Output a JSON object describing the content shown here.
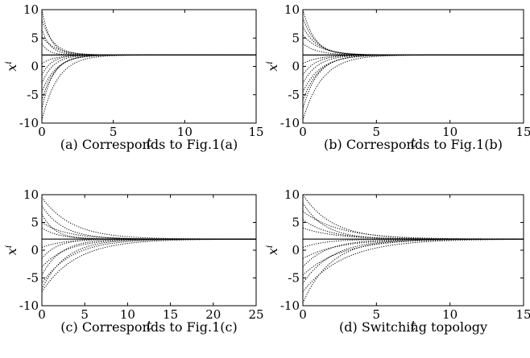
{
  "chart_data": [
    {
      "type": "line",
      "caption": "(a) Corresponds to Fig.1(a)",
      "xlabel": "t",
      "ylabel": "x",
      "ylabel_sup": "i",
      "xlim": [
        0,
        15
      ],
      "ylim": [
        -10,
        10
      ],
      "xticks": [
        "0",
        "5",
        "10",
        "15"
      ],
      "yticks": [
        "10",
        "5",
        "0",
        "-5",
        "-10"
      ],
      "consensus": 2,
      "line_style": "dotted",
      "grid": false,
      "series": [
        {
          "x0": 10,
          "tau": 0.6
        },
        {
          "x0": 8.2,
          "tau": 0.8
        },
        {
          "x0": 6.5,
          "tau": 0.6
        },
        {
          "x0": 5.2,
          "tau": 1.0
        },
        {
          "x0": 4.0,
          "tau": 0.5
        },
        {
          "x0": 0.5,
          "tau": 0.9
        },
        {
          "x0": -1.5,
          "tau": 0.7
        },
        {
          "x0": -3.0,
          "tau": 0.8
        },
        {
          "x0": -4.5,
          "tau": 1.0
        },
        {
          "x0": -6.0,
          "tau": 0.9
        },
        {
          "x0": -7.5,
          "tau": 0.8
        },
        {
          "x0": -9.5,
          "tau": 1.1
        }
      ]
    },
    {
      "type": "line",
      "caption": "(b) Corresponds to Fig.1(b)",
      "xlabel": "t",
      "ylabel": "x",
      "ylabel_sup": "i",
      "xlim": [
        0,
        15
      ],
      "ylim": [
        -10,
        10
      ],
      "xticks": [
        "0",
        "5",
        "10",
        "15"
      ],
      "yticks": [
        "10",
        "5",
        "0",
        "-5",
        "-10"
      ],
      "consensus": 2,
      "line_style": "dotted",
      "grid": false,
      "series": [
        {
          "x0": 10,
          "tau": 0.8
        },
        {
          "x0": 8.5,
          "tau": 0.9
        },
        {
          "x0": 7.0,
          "tau": 1.0
        },
        {
          "x0": 5.5,
          "tau": 1.2
        },
        {
          "x0": 4.0,
          "tau": 1.0
        },
        {
          "x0": 0.5,
          "tau": 1.1
        },
        {
          "x0": -1.5,
          "tau": 0.9
        },
        {
          "x0": -3.0,
          "tau": 1.0
        },
        {
          "x0": -4.5,
          "tau": 1.2
        },
        {
          "x0": -6.0,
          "tau": 1.1
        },
        {
          "x0": -7.5,
          "tau": 1.0
        },
        {
          "x0": -9.5,
          "tau": 1.3
        }
      ]
    },
    {
      "type": "line",
      "caption": "(c) Corresponds to Fig.1(c)",
      "xlabel": "t",
      "ylabel": "x",
      "ylabel_sup": "i",
      "xlim": [
        0,
        25
      ],
      "ylim": [
        -10,
        10
      ],
      "xticks": [
        "0",
        "5",
        "10",
        "15",
        "20",
        "25"
      ],
      "yticks": [
        "10",
        "5",
        "0",
        "-5",
        "-10"
      ],
      "consensus": 2,
      "line_style": "dotted",
      "grid": false,
      "series": [
        {
          "x0": 9.5,
          "tau": 3.5
        },
        {
          "x0": 8.0,
          "tau": 2.5
        },
        {
          "x0": 6.5,
          "tau": 1.5
        },
        {
          "x0": 5.0,
          "tau": 3.0
        },
        {
          "x0": 4.0,
          "tau": 2.0
        },
        {
          "x0": 0.5,
          "tau": 2.5
        },
        {
          "x0": -1.5,
          "tau": 1.8
        },
        {
          "x0": -3.0,
          "tau": 3.0
        },
        {
          "x0": -4.5,
          "tau": 2.2
        },
        {
          "x0": -6.0,
          "tau": 3.5
        },
        {
          "x0": -7.0,
          "tau": 2.8
        },
        {
          "x0": -7.5,
          "tau": 4.0
        }
      ]
    },
    {
      "type": "line",
      "caption": "(d) Switching topology",
      "xlabel": "t",
      "ylabel": "x",
      "ylabel_sup": "i",
      "xlim": [
        0,
        15
      ],
      "ylim": [
        -10,
        10
      ],
      "xticks": [
        "0",
        "5",
        "10",
        "15"
      ],
      "yticks": [
        "10",
        "5",
        "0",
        "-5",
        "-10"
      ],
      "consensus": 2,
      "line_style": "dotted",
      "grid": false,
      "series": [
        {
          "x0": 10,
          "tau": 2.0
        },
        {
          "x0": 8.5,
          "tau": 1.5
        },
        {
          "x0": 7.0,
          "tau": 2.5
        },
        {
          "x0": 5.5,
          "tau": 1.8
        },
        {
          "x0": 4.0,
          "tau": 2.2
        },
        {
          "x0": 0.5,
          "tau": 1.6
        },
        {
          "x0": -1.5,
          "tau": 2.4
        },
        {
          "x0": -3.0,
          "tau": 1.7
        },
        {
          "x0": -4.5,
          "tau": 2.6
        },
        {
          "x0": -6.0,
          "tau": 2.0
        },
        {
          "x0": -7.5,
          "tau": 2.8
        },
        {
          "x0": -9.5,
          "tau": 1.9
        }
      ]
    }
  ]
}
